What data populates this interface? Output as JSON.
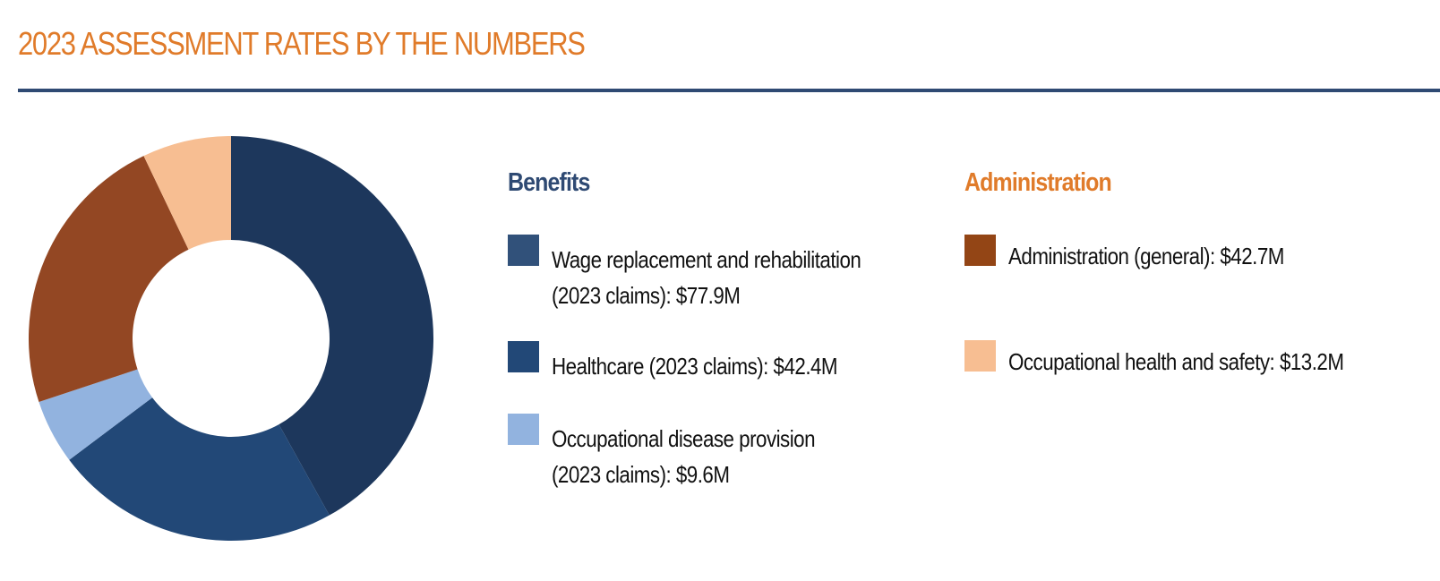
{
  "title": "2023 ASSESSMENT RATES BY THE NUMBERS",
  "colors": {
    "title": "#e07b2a",
    "rule": "#2f4a73",
    "benefits_heading": "#2f4a73",
    "administration_heading": "#e07b2a"
  },
  "chart_data": {
    "type": "pie",
    "subtype": "donut",
    "unit": "$M",
    "slices": [
      {
        "label": "Wage replacement and rehabilitation (2023 claims)",
        "value": 77.9,
        "color": "#1d375c"
      },
      {
        "label": "Healthcare (2023 claims)",
        "value": 42.4,
        "color": "#224877"
      },
      {
        "label": "Occupational disease provision (2023 claims)",
        "value": 9.6,
        "color": "#92b3df"
      },
      {
        "label": "Administration (general)",
        "value": 42.7,
        "color": "#934723"
      },
      {
        "label": "Occupational health and safety",
        "value": 13.2,
        "color": "#f7be92"
      }
    ]
  },
  "legend": {
    "benefits": {
      "heading": "Benefits",
      "items": [
        {
          "line1": "Wage replacement and rehabilitation",
          "line2": "(2023 claims): $77.9M",
          "color": "#31517a"
        },
        {
          "line1": "Healthcare (2023 claims): $42.4M",
          "line2": "",
          "color": "#224877"
        },
        {
          "line1": "Occupational disease provision",
          "line2": "(2023 claims): $9.6M",
          "color": "#92b3df"
        }
      ]
    },
    "administration": {
      "heading": "Administration",
      "items": [
        {
          "line1": "Administration (general): $42.7M",
          "line2": "",
          "color": "#934515"
        },
        {
          "line1": "Occupational health and safety: $13.2M",
          "line2": "",
          "color": "#f7be92"
        }
      ]
    }
  }
}
